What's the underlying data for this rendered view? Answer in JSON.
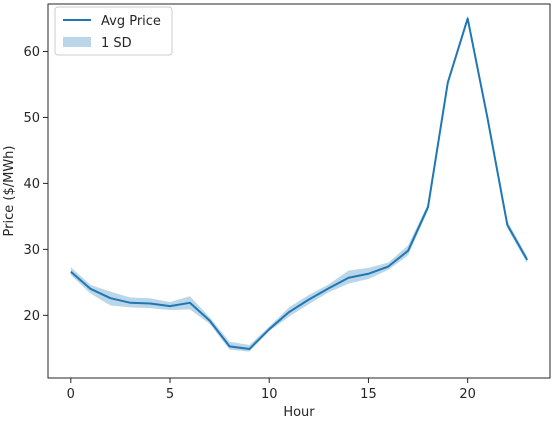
{
  "chart_data": {
    "type": "line",
    "title": "",
    "xlabel": "Hour",
    "ylabel": "Price ($/MWh)",
    "xlim": [
      -1.15,
      24.15
    ],
    "ylim": [
      10.5,
      67.2
    ],
    "xticks": [
      0,
      5,
      10,
      15,
      20
    ],
    "yticks": [
      20,
      30,
      40,
      50,
      60
    ],
    "grid": false,
    "legend_position": "top-left",
    "colors": {
      "line": "#1f77b4",
      "band": "#1f77b4",
      "axis": "#262626",
      "background": "#ffffff"
    },
    "series": [
      {
        "name": "Avg Price",
        "x": [
          0,
          1,
          2,
          3,
          4,
          5,
          6,
          7,
          8,
          9,
          10,
          11,
          12,
          13,
          14,
          15,
          16,
          17,
          18,
          19,
          20,
          21,
          22,
          23
        ],
        "values": [
          26.6,
          24.0,
          22.6,
          21.9,
          21.8,
          21.4,
          21.9,
          19.2,
          15.3,
          14.9,
          17.9,
          20.5,
          22.4,
          24.1,
          25.7,
          26.3,
          27.4,
          29.8,
          36.4,
          55.3,
          65.0,
          49.9,
          33.7,
          28.4
        ]
      }
    ],
    "band": {
      "name": "1 SD",
      "lower": [
        26.1,
        23.3,
        21.5,
        21.2,
        21.1,
        20.8,
        20.9,
        18.7,
        14.8,
        14.5,
        17.6,
        19.8,
        21.7,
        23.5,
        24.8,
        25.5,
        26.9,
        29.1,
        35.9,
        54.8,
        64.5,
        49.4,
        33.2,
        27.9
      ],
      "upper": [
        27.3,
        24.6,
        23.6,
        22.7,
        22.6,
        22.0,
        22.9,
        19.7,
        16.0,
        15.5,
        18.3,
        21.2,
        23.1,
        24.7,
        26.8,
        27.2,
        28.0,
        30.6,
        36.9,
        55.8,
        65.5,
        50.4,
        34.3,
        28.9
      ]
    },
    "legend": [
      {
        "label": "Avg Price",
        "kind": "line"
      },
      {
        "label": "1 SD",
        "kind": "patch"
      }
    ]
  }
}
